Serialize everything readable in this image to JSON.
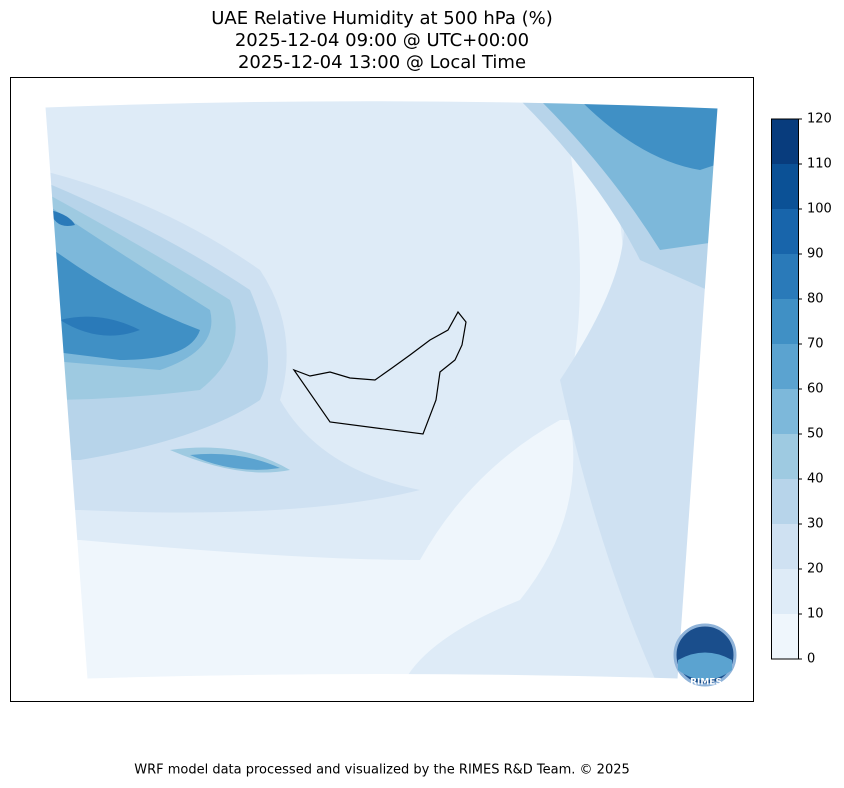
{
  "title": [
    "UAE Relative Humidity at 500 hPa (%)",
    "2025-12-04 09:00 @ UTC+00:00",
    "2025-12-04 13:00 @ Local Time"
  ],
  "colorbar": {
    "lim": [
      0,
      120
    ],
    "ticks": [
      0,
      10,
      20,
      30,
      40,
      50,
      60,
      70,
      80,
      90,
      100,
      110,
      120
    ],
    "colors": [
      "#eff6fc",
      "#deebf7",
      "#cfe1f2",
      "#b7d4ea",
      "#9ecae1",
      "#7db8da",
      "#5ba3d0",
      "#4090c5",
      "#2a7ab9",
      "#1865ab",
      "#0b5196",
      "#083c7d"
    ]
  },
  "logo": "RIMES",
  "footer": "WRF model data processed and visualized by the RIMES R&D Team. © 2025"
}
